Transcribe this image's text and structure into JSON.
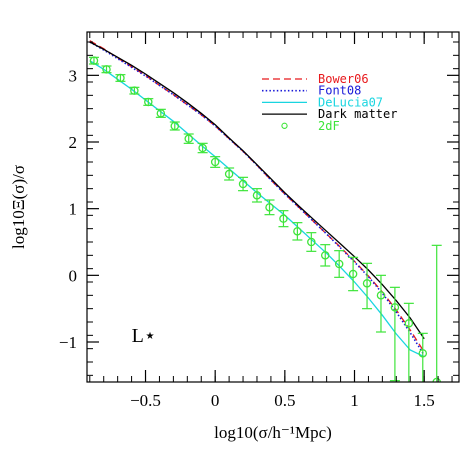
{
  "chart_data": {
    "type": "line",
    "xlabel": "log10(σ/h⁻¹Mpc)",
    "ylabel": "log10Ξ(σ)/σ",
    "xlim": [
      -0.92,
      1.75
    ],
    "ylim": [
      -1.6,
      3.65
    ],
    "xticks": [
      -0.5,
      0,
      0.5,
      1,
      1.5
    ],
    "xtick_labels": [
      "−0.5",
      "0",
      "0.5",
      "1",
      "1.5"
    ],
    "yticks": [
      -1,
      0,
      1,
      2,
      3
    ],
    "ytick_labels": [
      "−1",
      "0",
      "1",
      "2",
      "3"
    ],
    "annotation": "L⋆",
    "legend_position": "top-right",
    "grid": false,
    "series": [
      {
        "name": "Bower06",
        "style": "dashed",
        "color": "#e8191c",
        "x": [
          -0.9,
          -0.8,
          -0.7,
          -0.6,
          -0.5,
          -0.4,
          -0.3,
          -0.2,
          -0.1,
          0.0,
          0.1,
          0.2,
          0.3,
          0.4,
          0.5,
          0.6,
          0.7,
          0.8,
          0.9,
          1.0,
          1.1,
          1.2,
          1.3,
          1.4,
          1.5
        ],
        "y": [
          3.52,
          3.4,
          3.26,
          3.13,
          3.0,
          2.85,
          2.71,
          2.56,
          2.41,
          2.24,
          2.05,
          1.86,
          1.65,
          1.43,
          1.22,
          1.02,
          0.82,
          0.62,
          0.42,
          0.21,
          -0.01,
          -0.25,
          -0.52,
          -0.82,
          -1.15
        ]
      },
      {
        "name": "Font08",
        "style": "dotted",
        "color": "#1a1ad8",
        "x": [
          -0.9,
          -0.8,
          -0.7,
          -0.6,
          -0.5,
          -0.4,
          -0.3,
          -0.2,
          -0.1,
          0.0,
          0.1,
          0.2,
          0.3,
          0.4,
          0.5,
          0.6,
          0.7,
          0.8,
          0.9,
          1.0,
          1.1,
          1.2,
          1.3,
          1.4,
          1.5
        ],
        "y": [
          3.5,
          3.38,
          3.25,
          3.12,
          2.99,
          2.85,
          2.71,
          2.56,
          2.41,
          2.24,
          2.05,
          1.86,
          1.65,
          1.43,
          1.22,
          1.02,
          0.82,
          0.62,
          0.41,
          0.2,
          -0.02,
          -0.27,
          -0.55,
          -0.86,
          -1.2
        ]
      },
      {
        "name": "DeLucia07",
        "style": "solid",
        "color": "#19d5e0",
        "x": [
          -0.9,
          -0.8,
          -0.7,
          -0.6,
          -0.5,
          -0.4,
          -0.3,
          -0.2,
          -0.1,
          0.0,
          0.1,
          0.2,
          0.3,
          0.4,
          0.5,
          0.6,
          0.7,
          0.8,
          0.9,
          1.0,
          1.1,
          1.2,
          1.3,
          1.4,
          1.5
        ],
        "y": [
          3.22,
          3.09,
          2.94,
          2.79,
          2.63,
          2.47,
          2.31,
          2.13,
          1.95,
          1.78,
          1.6,
          1.42,
          1.24,
          1.07,
          0.9,
          0.71,
          0.52,
          0.33,
          0.12,
          -0.1,
          -0.34,
          -0.6,
          -0.88,
          -1.12,
          -1.22
        ]
      },
      {
        "name": "Dark matter",
        "style": "solid",
        "color": "#000000",
        "x": [
          -0.9,
          -0.8,
          -0.7,
          -0.6,
          -0.5,
          -0.4,
          -0.3,
          -0.2,
          -0.1,
          0.0,
          0.1,
          0.2,
          0.3,
          0.4,
          0.5,
          0.6,
          0.7,
          0.8,
          0.9,
          1.0,
          1.1,
          1.2,
          1.3,
          1.4,
          1.5
        ],
        "y": [
          3.5,
          3.39,
          3.27,
          3.15,
          3.02,
          2.88,
          2.74,
          2.59,
          2.43,
          2.26,
          2.06,
          1.87,
          1.66,
          1.45,
          1.24,
          1.04,
          0.85,
          0.66,
          0.47,
          0.28,
          0.08,
          -0.14,
          -0.38,
          -0.64,
          -0.95
        ]
      },
      {
        "name": "2dF",
        "style": "markers",
        "color": "#3ee43a",
        "x": [
          -0.87,
          -0.78,
          -0.68,
          -0.58,
          -0.48,
          -0.39,
          -0.29,
          -0.19,
          -0.09,
          0.0,
          0.1,
          0.2,
          0.3,
          0.39,
          0.49,
          0.59,
          0.69,
          0.79,
          0.89,
          0.99,
          1.09,
          1.19,
          1.29,
          1.39,
          1.49,
          1.59
        ],
        "y": [
          3.22,
          3.09,
          2.96,
          2.77,
          2.6,
          2.43,
          2.24,
          2.05,
          1.91,
          1.7,
          1.52,
          1.37,
          1.2,
          1.02,
          0.85,
          0.66,
          0.5,
          0.3,
          0.17,
          0.02,
          -0.12,
          -0.3,
          -0.48,
          -0.72,
          -1.17,
          -1.6
        ],
        "err_low": [
          0.05,
          0.05,
          0.05,
          0.05,
          0.05,
          0.06,
          0.06,
          0.07,
          0.07,
          0.08,
          0.09,
          0.1,
          0.1,
          0.11,
          0.12,
          0.13,
          0.14,
          0.16,
          0.2,
          0.25,
          0.38,
          0.55,
          1.1,
          1.0,
          0.8,
          0.1
        ],
        "err_high": [
          0.05,
          0.05,
          0.05,
          0.05,
          0.05,
          0.06,
          0.06,
          0.07,
          0.07,
          0.08,
          0.09,
          0.1,
          0.1,
          0.11,
          0.12,
          0.13,
          0.14,
          0.16,
          0.2,
          0.25,
          0.3,
          0.3,
          0.3,
          0.3,
          0.3,
          2.05
        ]
      }
    ]
  }
}
